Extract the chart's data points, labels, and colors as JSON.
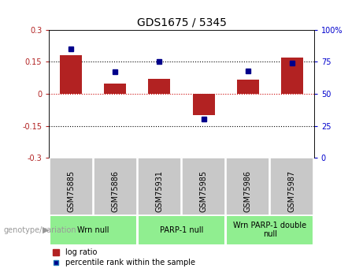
{
  "title": "GDS1675 / 5345",
  "samples": [
    "GSM75885",
    "GSM75886",
    "GSM75931",
    "GSM75985",
    "GSM75986",
    "GSM75987"
  ],
  "log_ratio": [
    0.18,
    0.05,
    0.07,
    -0.1,
    0.065,
    0.17
  ],
  "percentile_rank": [
    85,
    67,
    75,
    30,
    68,
    74
  ],
  "ylim_left": [
    -0.3,
    0.3
  ],
  "ylim_right": [
    0,
    100
  ],
  "yticks_left": [
    -0.3,
    -0.15,
    0,
    0.15,
    0.3
  ],
  "yticks_right": [
    0,
    25,
    50,
    75,
    100
  ],
  "bar_color": "#b22222",
  "scatter_color": "#00008b",
  "bar_width": 0.5,
  "groups": [
    {
      "label": "Wrn null",
      "start": 0,
      "end": 2
    },
    {
      "label": "PARP-1 null",
      "start": 2,
      "end": 4
    },
    {
      "label": "Wrn PARP-1 double\nnull",
      "start": 4,
      "end": 6
    }
  ],
  "group_color": "#90EE90",
  "sample_box_color": "#c8c8c8",
  "legend_bar_label": "log ratio",
  "legend_scatter_label": "percentile rank within the sample",
  "xlabel_annotation": "genotype/variation",
  "right_axis_color": "#0000cd",
  "left_axis_color": "#b22222",
  "zero_line_color": "#cc0000",
  "title_fontsize": 10,
  "tick_fontsize": 7,
  "label_fontsize": 7,
  "group_fontsize": 7
}
